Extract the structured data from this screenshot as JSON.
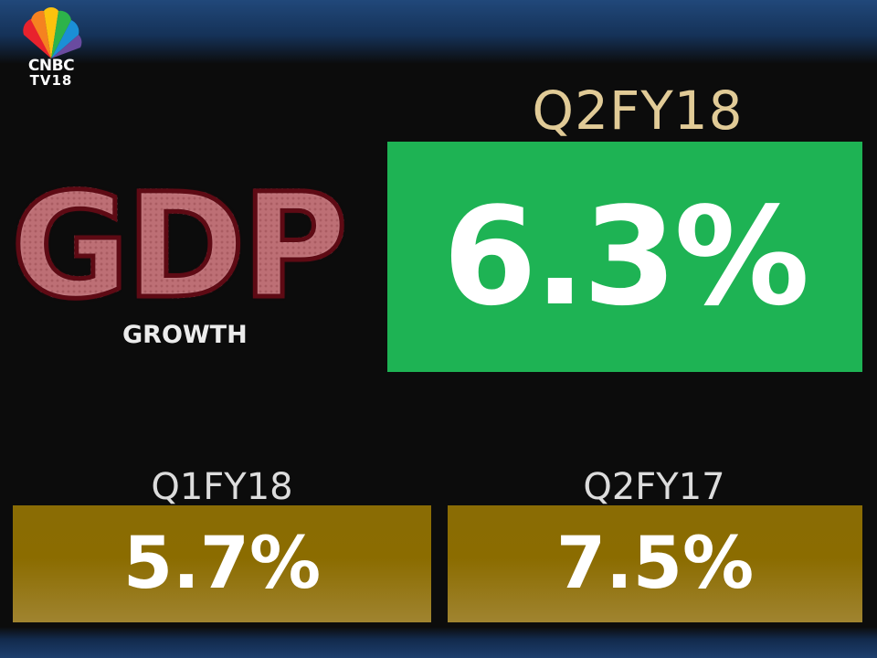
{
  "logo": {
    "line1": "CNBC",
    "line2": "TV18"
  },
  "headline": {
    "title": "GDP",
    "subtitle": "GROWTH"
  },
  "main": {
    "period": "Q2FY18",
    "value": "6.3%",
    "color": "#1eb354"
  },
  "comparisons": [
    {
      "period": "Q1FY18",
      "value": "5.7%",
      "color": "#8b6c00"
    },
    {
      "period": "Q2FY17",
      "value": "7.5%",
      "color": "#8b6c00"
    }
  ]
}
